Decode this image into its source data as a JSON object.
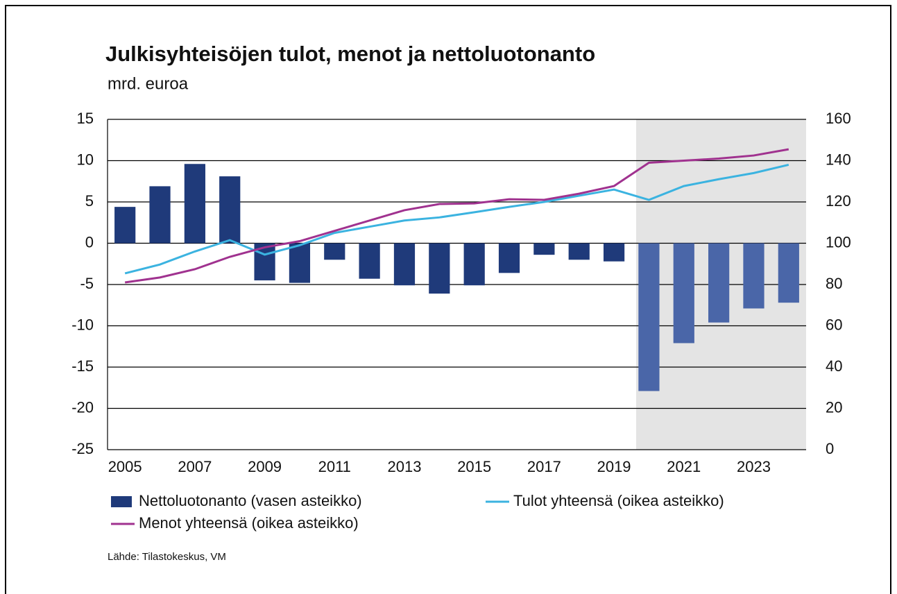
{
  "chart_data": {
    "type": "combo",
    "title": "Julkisyhteisöjen tulot, menot ja nettoluotonanto",
    "subtitle": "mrd. euroa",
    "source": "Lähde: Tilastokeskus, VM",
    "categories": [
      "2005",
      null,
      "2007",
      null,
      "2009",
      null,
      "2011",
      null,
      "2013",
      null,
      "2015",
      null,
      "2017",
      null,
      "2019",
      null,
      "2021",
      null,
      "2023",
      null
    ],
    "ylim": [
      -25,
      15
    ],
    "yticks": [
      -25,
      -20,
      -15,
      -10,
      -5,
      0,
      5,
      10,
      15
    ],
    "y2lim": [
      0,
      160
    ],
    "y2ticks": [
      0,
      20,
      40,
      60,
      80,
      100,
      120,
      140,
      160
    ],
    "grid": true,
    "series": [
      {
        "name": "Nettoluotonanto (vasen asteikko)",
        "type": "bar",
        "axis": "y",
        "color": "#1f3a7a",
        "colors": [
          "#1f3a7a",
          "#1f3a7a",
          "#1f3a7a",
          "#1f3a7a",
          "#1f3a7a",
          "#1f3a7a",
          "#1f3a7a",
          "#1f3a7a",
          "#1f3a7a",
          "#1f3a7a",
          "#1f3a7a",
          "#1f3a7a",
          "#1f3a7a",
          "#1f3a7a",
          "#1f3a7a",
          "#4a66a8",
          "#4a66a8",
          "#4a66a8",
          "#4a66a8",
          "#4a66a8"
        ],
        "values": [
          4.4,
          6.9,
          9.6,
          8.1,
          -4.5,
          -4.8,
          -2.0,
          -4.3,
          -5.1,
          -6.1,
          -5.1,
          -3.6,
          -1.4,
          -2.0,
          -2.2,
          -17.9,
          -12.1,
          -9.6,
          -7.9,
          -7.2
        ]
      },
      {
        "name": "Tulot yhteensä (oikea asteikko)",
        "type": "line",
        "axis": "y2",
        "color": "#3bb3e0",
        "values": [
          85.4,
          89.7,
          96,
          101.5,
          94.5,
          99,
          105,
          108,
          111,
          112.5,
          115,
          117.6,
          120,
          123,
          126,
          121,
          127.7,
          131,
          134,
          138
        ]
      },
      {
        "name": "Menot yhteensä (oikea asteikko)",
        "type": "line",
        "axis": "y2",
        "color": "#a0328f",
        "values": [
          81,
          83.4,
          87.4,
          93.4,
          98,
          101,
          106,
          111,
          116,
          119,
          119.3,
          121.3,
          121,
          124,
          127.7,
          139,
          140,
          141,
          142.5,
          145.5
        ]
      }
    ]
  }
}
